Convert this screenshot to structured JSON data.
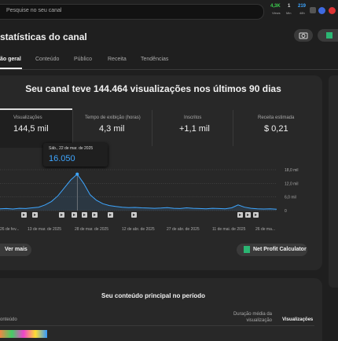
{
  "topbar": {
    "search_placeholder": "Pesquise no seu canal",
    "stats": [
      {
        "value": "4,3K",
        "label": "Views"
      },
      {
        "value": "1",
        "label": "Min"
      },
      {
        "value": "219",
        "label": "48h"
      }
    ]
  },
  "header": {
    "title": "statísticas do canal"
  },
  "tabs": [
    "ão geral",
    "Conteúdo",
    "Público",
    "Receita",
    "Tendências"
  ],
  "summary": {
    "headline": "Seu canal teve 144.464 visualizações nos últimos 90 dias",
    "metrics": [
      {
        "label": "Visualizações",
        "value": "144,5 mil"
      },
      {
        "label": "Tempo de exibição (horas)",
        "value": "4,3 mil"
      },
      {
        "label": "Inscritos",
        "value": "+1,1 mil"
      },
      {
        "label": "Receita estimada",
        "value": "$ 0,21"
      }
    ]
  },
  "tooltip": {
    "date": "Sáb., 22 de mar. de 2025",
    "value": "16.050"
  },
  "chart_data": {
    "type": "line",
    "ylim": [
      0,
      18000
    ],
    "yticks": [
      0,
      {
        "value": 6000,
        "label": "6,0 mil"
      },
      {
        "value": 12000,
        "label": "12,0 mil"
      },
      {
        "value": 18000,
        "label": "18,0 mil"
      }
    ],
    "color": "#3ea6ff",
    "grid": true,
    "values": [
      800,
      900,
      700,
      1000,
      900,
      1200,
      1500,
      2500,
      4000,
      6500,
      10000,
      13500,
      16050,
      12000,
      7000,
      4500,
      3000,
      2200,
      1800,
      1500,
      1300,
      1400,
      1200,
      1100,
      1000,
      1100,
      1300,
      1000,
      900,
      1200,
      1000,
      900,
      800,
      1000,
      900,
      800,
      1200,
      2500,
      1500,
      1000,
      800,
      700,
      800,
      600
    ],
    "x_labels": [
      "26 de fev...",
      "13 de mar. de 2025",
      "28 de mar. de 2025",
      "12 de abr. de 2025",
      "27 de abr. de 2025",
      "11 de mai. de 2025",
      "26 de ma..."
    ]
  },
  "buttons": {
    "see_more": "Ver mais",
    "calculator": "Net Profit Calculator"
  },
  "top_content": {
    "title": "Seu conteúdo principal no período",
    "columns": [
      "onteúdo",
      "Duração média da visualização",
      "Visualizações"
    ]
  }
}
